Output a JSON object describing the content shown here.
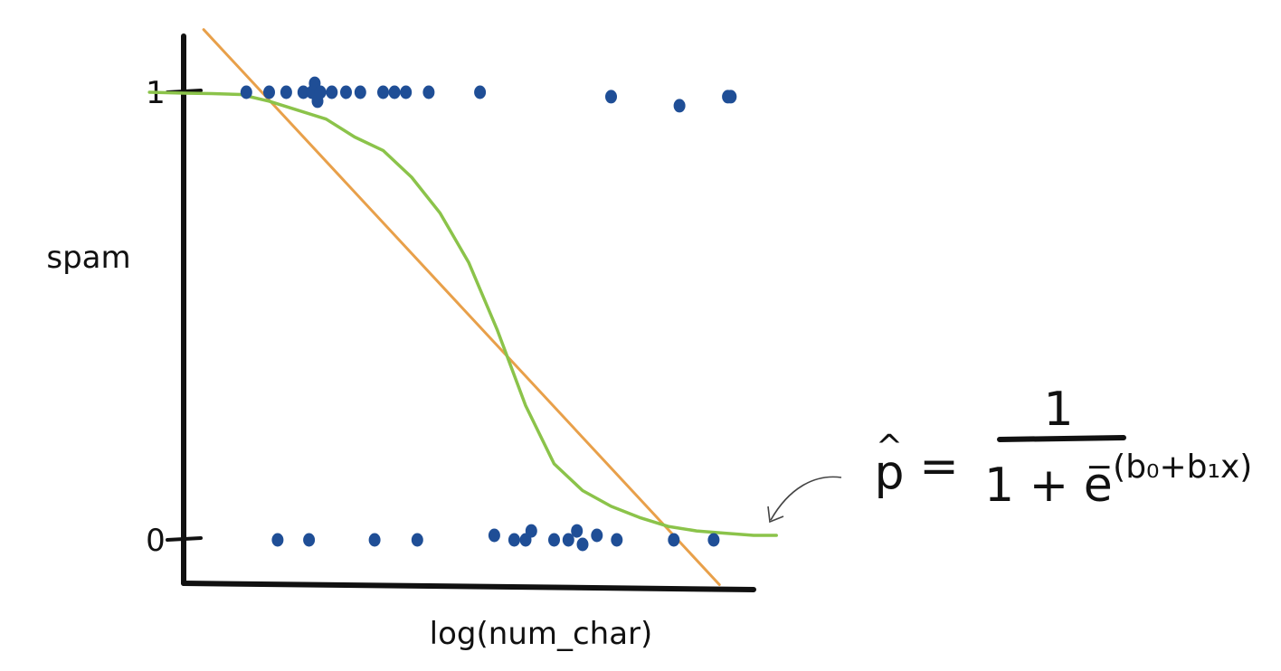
{
  "chart_data": {
    "type": "scatter",
    "title": "",
    "xlabel": "log(num_char)",
    "ylabel": "spam",
    "ylim": [
      -0.1,
      1.13
    ],
    "xlim": [
      0,
      1
    ],
    "yticks": [
      {
        "value": 0,
        "label": "0"
      },
      {
        "value": 1,
        "label": "1"
      }
    ],
    "grid": false,
    "legend": "none",
    "colors": {
      "points": "#1f4e96",
      "linear_fit": "#e8a04a",
      "logistic_fit": "#8bc34a",
      "axes": "#111111"
    },
    "points": [
      {
        "x": 0.11,
        "y": 1.0
      },
      {
        "x": 0.15,
        "y": 1.0
      },
      {
        "x": 0.18,
        "y": 1.0
      },
      {
        "x": 0.21,
        "y": 1.0
      },
      {
        "x": 0.225,
        "y": 1.0
      },
      {
        "x": 0.23,
        "y": 1.02
      },
      {
        "x": 0.235,
        "y": 0.98
      },
      {
        "x": 0.24,
        "y": 1.0
      },
      {
        "x": 0.26,
        "y": 1.0
      },
      {
        "x": 0.285,
        "y": 1.0
      },
      {
        "x": 0.31,
        "y": 1.0
      },
      {
        "x": 0.35,
        "y": 1.0
      },
      {
        "x": 0.37,
        "y": 1.0
      },
      {
        "x": 0.39,
        "y": 1.0
      },
      {
        "x": 0.43,
        "y": 1.0
      },
      {
        "x": 0.52,
        "y": 1.0
      },
      {
        "x": 0.75,
        "y": 0.99
      },
      {
        "x": 0.87,
        "y": 0.97
      },
      {
        "x": 0.955,
        "y": 0.99
      },
      {
        "x": 0.96,
        "y": 0.99
      },
      {
        "x": 0.165,
        "y": 0.0
      },
      {
        "x": 0.22,
        "y": 0.0
      },
      {
        "x": 0.335,
        "y": 0.0
      },
      {
        "x": 0.41,
        "y": 0.0
      },
      {
        "x": 0.545,
        "y": 0.01
      },
      {
        "x": 0.58,
        "y": 0.0
      },
      {
        "x": 0.6,
        "y": 0.0
      },
      {
        "x": 0.61,
        "y": 0.02
      },
      {
        "x": 0.65,
        "y": 0.0
      },
      {
        "x": 0.675,
        "y": 0.0
      },
      {
        "x": 0.69,
        "y": 0.02
      },
      {
        "x": 0.7,
        "y": -0.01
      },
      {
        "x": 0.725,
        "y": 0.01
      },
      {
        "x": 0.76,
        "y": 0.0
      },
      {
        "x": 0.86,
        "y": 0.0
      },
      {
        "x": 0.93,
        "y": 0.0
      }
    ],
    "series": [
      {
        "type": "line",
        "role": "linear_fit",
        "x": [
          0.035,
          0.94
        ],
        "y": [
          1.14,
          -0.1
        ]
      },
      {
        "type": "line",
        "role": "logistic_fit",
        "x": [
          -0.06,
          0.0,
          0.05,
          0.1,
          0.15,
          0.2,
          0.25,
          0.3,
          0.35,
          0.4,
          0.45,
          0.5,
          0.55,
          0.6,
          0.65,
          0.7,
          0.75,
          0.8,
          0.85,
          0.9,
          0.95,
          1.0,
          1.04
        ],
        "y": [
          1.0,
          0.998,
          0.997,
          0.995,
          0.98,
          0.96,
          0.94,
          0.9,
          0.87,
          0.81,
          0.73,
          0.62,
          0.47,
          0.3,
          0.17,
          0.11,
          0.075,
          0.05,
          0.03,
          0.02,
          0.015,
          0.01,
          0.01
        ]
      }
    ],
    "annotation": {
      "p": "p",
      "hat": "^",
      "equals": "=",
      "numerator": "1",
      "denominator_prefix": "1 + e",
      "exponent": "−(b₀+b₁x)"
    }
  }
}
